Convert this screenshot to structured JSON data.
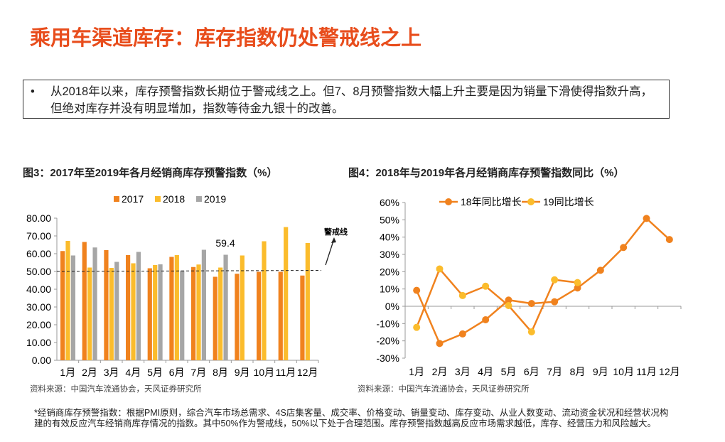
{
  "title": "乘用车渠道库存：库存指数仍处警戒线之上",
  "bullet": "从2018年以来，库存预警指数长期位于警戒线之上。但7、8月预警指数大幅上升主要是因为销量下滑使得指数升高，但绝对库存并没有明显增加，指数等待金九银十的改善。",
  "source": "资料来源：中国汽车流通协会，天风证券研究所",
  "note": "*经销商库存预警指数：根据PMI原则，综合汽车市场总需求、4S店集客量、成交率、价格变动、销量变动、库存变动、从业人数变动、流动资金状况和经营状况构建的有效反应汽车经销商库存情况的指数。其中50%作为警戒线，50%以下处于合理范围。库存预警指数越高反应市场需求越低，库存、经营压力和风险越大。",
  "chart_data": [
    {
      "type": "bar",
      "title": "图3：2017年至2019年各月经销商库存预警指数（%）",
      "categories": [
        "1月",
        "2月",
        "3月",
        "4月",
        "5月",
        "6月",
        "7月",
        "8月",
        "9月",
        "10月",
        "11月",
        "12月"
      ],
      "series": [
        {
          "name": "2017",
          "color": "#f0821e",
          "values": [
            61.5,
            66.6,
            62.0,
            59.2,
            51.8,
            58.2,
            52.5,
            47.0,
            48.7,
            49.8,
            49.8,
            47.7
          ]
        },
        {
          "name": "2018",
          "color": "#fbbc2c",
          "values": [
            67.2,
            52.2,
            52.0,
            54.6,
            53.6,
            59.2,
            53.9,
            52.2,
            59.0,
            67.0,
            75.0,
            66.0
          ]
        },
        {
          "name": "2019",
          "color": "#a6a6a6",
          "values": [
            59.0,
            63.5,
            55.4,
            61.0,
            54.0,
            50.5,
            62.2,
            59.4,
            null,
            null,
            null,
            null
          ]
        }
      ],
      "ylim": [
        0,
        80
      ],
      "yticks": [
        "0.00",
        "10.00",
        "20.00",
        "30.00",
        "40.00",
        "50.00",
        "60.00",
        "70.00",
        "80.00"
      ],
      "reference_line": 50,
      "annotation": "警戒线",
      "data_label": "59.4",
      "legend": "top"
    },
    {
      "type": "line",
      "title": "图4：2018年与2019年各月经销商库存预警指数同比（%）",
      "categories": [
        "1月",
        "2月",
        "3月",
        "4月",
        "5月",
        "6月",
        "7月",
        "8月",
        "9月",
        "10月",
        "11月",
        "12月"
      ],
      "series": [
        {
          "name": "18年同比增长",
          "color": "#f0821e",
          "values": [
            9.2,
            -21.5,
            -16.0,
            -7.8,
            3.6,
            1.6,
            2.6,
            10.6,
            20.8,
            34.0,
            50.8,
            38.6
          ]
        },
        {
          "name": "19同比增长",
          "color": "#fbbc2c",
          "values": [
            -12.2,
            21.6,
            6.2,
            11.6,
            0.4,
            -14.8,
            15.3,
            13.7,
            null,
            null,
            null,
            null
          ]
        }
      ],
      "ylim": [
        -30,
        60
      ],
      "yticks": [
        "-30%",
        "-20%",
        "-10%",
        "0%",
        "10%",
        "20%",
        "30%",
        "40%",
        "50%",
        "60%"
      ],
      "legend": "top"
    }
  ]
}
